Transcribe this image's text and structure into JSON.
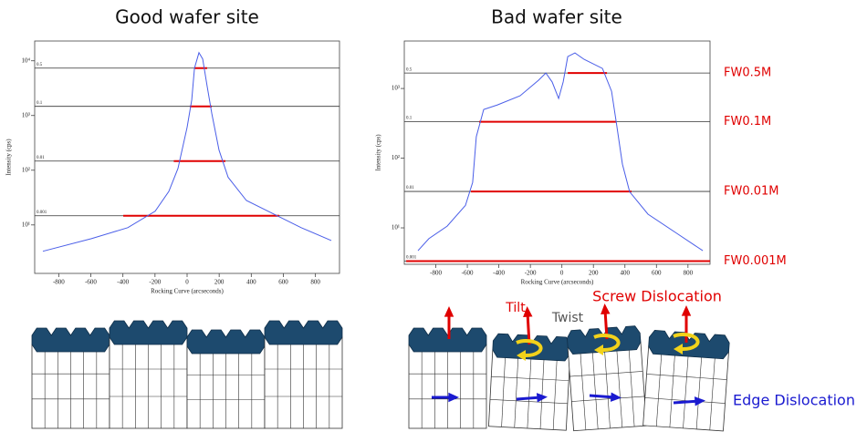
{
  "chart_data": [
    {
      "type": "line",
      "title": "Good wafer site",
      "xlabel": "Rocking Curve (arcseconds)",
      "ylabel": "Intensity (cps)",
      "log_y": true,
      "xlim": [
        -950,
        950
      ],
      "ylim": [
        1.3,
        23000
      ],
      "xticks": [
        -800,
        -600,
        -400,
        -200,
        0,
        200,
        400,
        600,
        800
      ],
      "yticks": [
        {
          "value": 10,
          "label": "10¹"
        },
        {
          "value": 100,
          "label": "10²"
        },
        {
          "value": 1000,
          "label": "10³"
        },
        {
          "value": 10000,
          "label": "10⁴"
        }
      ],
      "series": [
        {
          "name": "Intensity",
          "color": "#4a5ee8",
          "x": [
            -899,
            -597,
            -370,
            -199,
            -114,
            -57,
            0,
            29,
            46,
            74,
            97,
            125,
            154,
            199,
            256,
            370,
            541,
            711,
            899
          ],
          "values": [
            3.3,
            5.6,
            8.9,
            17.8,
            41,
            108,
            607,
            1920,
            7360,
            14100,
            10800,
            3410,
            1080,
            233,
            74,
            28,
            15.8,
            8.9,
            5.2
          ]
        }
      ],
      "reference_lines": [
        {
          "label": "0.5",
          "value": 7350,
          "width": [
            46,
            125
          ]
        },
        {
          "label": "0.1",
          "value": 1470,
          "width": [
            17,
            154
          ]
        },
        {
          "label": "0.01",
          "value": 147,
          "width": [
            -83,
            239
          ]
        },
        {
          "label": "0.001",
          "value": 14.7,
          "width": [
            -398,
            575
          ]
        }
      ]
    },
    {
      "type": "line",
      "title": "Bad wafer site",
      "xlabel": "Rocking Curve (arcseconds)",
      "ylabel": "Intensity (cps)",
      "log_y": true,
      "xlim": [
        -1000,
        940
      ],
      "ylim": [
        3,
        4800
      ],
      "xticks": [
        -800,
        -600,
        -400,
        -200,
        0,
        200,
        400,
        600,
        800
      ],
      "yticks": [
        {
          "value": 10,
          "label": "10¹"
        },
        {
          "value": 100,
          "label": "10²"
        },
        {
          "value": 1000,
          "label": "10³"
        }
      ],
      "series": [
        {
          "name": "Intensity",
          "color": "#4a5ee8",
          "x": [
            -913,
            -844,
            -728,
            -612,
            -566,
            -543,
            -496,
            -409,
            -265,
            -149,
            -102,
            -62,
            -21,
            8,
            37,
            83,
            141,
            257,
            315,
            344,
            384,
            430,
            546,
            720,
            894
          ],
          "values": [
            4.7,
            7.0,
            10.6,
            21,
            45,
            203,
            500,
            582,
            785,
            1310,
            1670,
            1240,
            718,
            1240,
            2870,
            3240,
            2620,
            1940,
            914,
            338,
            82,
            33,
            15.7,
            8.6,
            4.7
          ]
        }
      ],
      "reference_lines": [
        {
          "label": "0.5",
          "value": 1665,
          "width": [
            37,
            286
          ],
          "name": "FW0.5M"
        },
        {
          "label": "0.1",
          "value": 333,
          "width": [
            -525,
            344
          ],
          "name": "FW0.1M"
        },
        {
          "label": "0.01",
          "value": 33.3,
          "width": [
            -577,
            442
          ],
          "name": "FW0.01M"
        },
        {
          "label": "0.001",
          "value": 3.33,
          "width": [
            -988,
            940
          ],
          "name": "FW0.001M"
        }
      ]
    }
  ],
  "diagram": {
    "tilt": "Tilt",
    "twist": "Twist",
    "screw": "Screw Dislocation",
    "edge": "Edge Dislocation"
  }
}
